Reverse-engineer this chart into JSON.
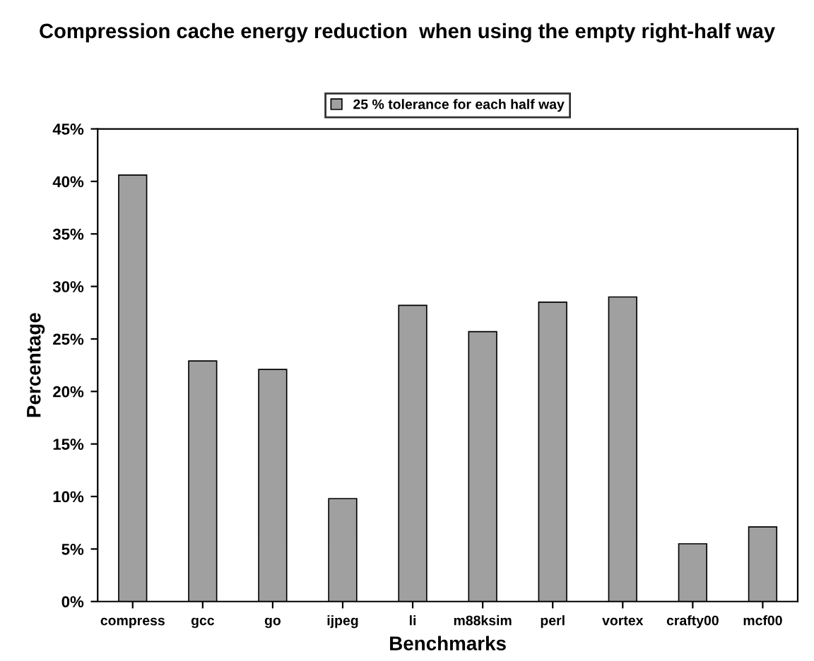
{
  "chart_data": {
    "type": "bar",
    "title": "Compression cache energy reduction  when using the empty right-half way",
    "xlabel": "Benchmarks",
    "ylabel": "Percentage",
    "categories": [
      "compress",
      "gcc",
      "go",
      "ijpeg",
      "li",
      "m88ksim",
      "perl",
      "vortex",
      "crafty00",
      "mcf00"
    ],
    "series": [
      {
        "name": "25 % tolerance for each half way",
        "color": "#a0a0a0",
        "values": [
          40.6,
          22.9,
          22.1,
          9.8,
          28.2,
          25.7,
          28.5,
          29.0,
          5.5,
          7.1
        ]
      }
    ],
    "ylim": [
      0,
      45
    ],
    "yticks": [
      {
        "value": 0,
        "label": "0%"
      },
      {
        "value": 5,
        "label": "5%"
      },
      {
        "value": 10,
        "label": "10%"
      },
      {
        "value": 15,
        "label": "15%"
      },
      {
        "value": 20,
        "label": "20%"
      },
      {
        "value": 25,
        "label": "25%"
      },
      {
        "value": 30,
        "label": "30%"
      },
      {
        "value": 35,
        "label": "35%"
      },
      {
        "value": 40,
        "label": "40%"
      },
      {
        "value": 45,
        "label": "45%"
      }
    ],
    "legend": "top",
    "grid": false
  }
}
